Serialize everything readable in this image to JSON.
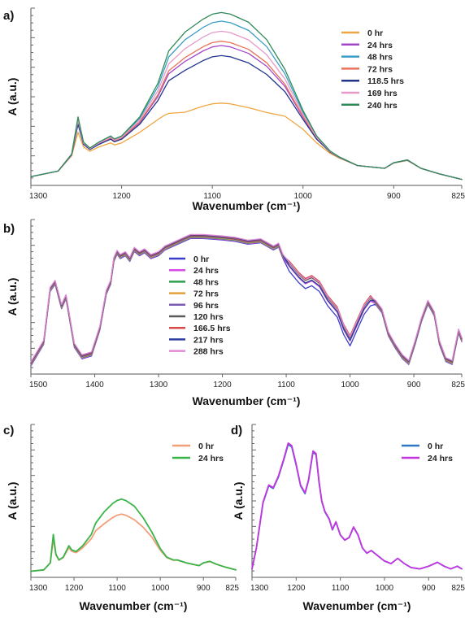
{
  "chart_data": [
    {
      "panel": "a)",
      "type": "line",
      "ylabel": "A (a.u.)",
      "xlabel": "Wavenumber (cm⁻¹)",
      "xlim": [
        1300,
        825
      ],
      "xticks": [
        1300,
        1200,
        1100,
        1000,
        900,
        825
      ],
      "x": [
        1300,
        1270,
        1255,
        1248,
        1242,
        1235,
        1225,
        1212,
        1208,
        1200,
        1180,
        1160,
        1152,
        1148,
        1130,
        1110,
        1100,
        1090,
        1080,
        1060,
        1040,
        1020,
        1000,
        985,
        970,
        960,
        940,
        910,
        900,
        885,
        870,
        850,
        825
      ],
      "base": [
        2,
        4,
        10,
        22,
        14,
        12,
        14,
        16,
        15,
        16,
        22,
        32,
        38,
        41,
        46,
        50,
        51.5,
        52,
        51.5,
        49,
        44,
        36,
        24,
        16,
        11,
        9,
        6,
        5,
        7,
        8,
        5,
        3,
        1
      ],
      "series": [
        {
          "name": "0 hr",
          "color": "#f0a640",
          "scale": 0.55
        },
        {
          "name": "24 hrs",
          "color": "#a347c8",
          "scale": 0.95
        },
        {
          "name": "48 hrs",
          "color": "#3a9ec6",
          "scale": 1.12
        },
        {
          "name": "72 hrs",
          "color": "#e8735a",
          "scale": 0.98
        },
        {
          "name": "118.5 hrs",
          "color": "#23348f",
          "scale": 0.88
        },
        {
          "name": "169 hrs",
          "color": "#e59ac9",
          "scale": 1.05
        },
        {
          "name": "240 hrs",
          "color": "#2e8b57",
          "scale": 1.18
        }
      ],
      "legend": "right"
    },
    {
      "panel": "b)",
      "type": "line",
      "ylabel": "A (a.u.)",
      "xlabel": "Wavenumber (cm⁻¹)",
      "xlim": [
        1500,
        825
      ],
      "xticks": [
        1500,
        1400,
        1300,
        1200,
        1100,
        1000,
        900,
        825
      ],
      "x": [
        1500,
        1480,
        1470,
        1462,
        1452,
        1445,
        1432,
        1420,
        1405,
        1392,
        1382,
        1375,
        1370,
        1365,
        1360,
        1352,
        1345,
        1338,
        1330,
        1322,
        1312,
        1300,
        1290,
        1275,
        1260,
        1250,
        1230,
        1200,
        1180,
        1160,
        1140,
        1120,
        1112,
        1105,
        1095,
        1080,
        1070,
        1060,
        1048,
        1035,
        1020,
        1010,
        1000,
        990,
        978,
        968,
        960,
        950,
        940,
        930,
        918,
        908,
        898,
        888,
        878,
        868,
        860,
        850,
        840,
        830,
        825
      ],
      "base": [
        5,
        20,
        57,
        62,
        45,
        52,
        18,
        10,
        12,
        30,
        55,
        62,
        78,
        83,
        80,
        82,
        78,
        85,
        82,
        84,
        80,
        82,
        86,
        89,
        92,
        94,
        94,
        93,
        92,
        90,
        91,
        86,
        88,
        80,
        76,
        68,
        64,
        66,
        62,
        52,
        44,
        32,
        24,
        34,
        46,
        52,
        48,
        42,
        26,
        18,
        10,
        6,
        20,
        36,
        48,
        40,
        20,
        8,
        6,
        28,
        22
      ],
      "series": [
        {
          "name": "0 hr",
          "color": "#3d3dcc",
          "dip": 1.0
        },
        {
          "name": "24 hrs",
          "color": "#d44be6",
          "dip": 0.4
        },
        {
          "name": "48 hrs",
          "color": "#2e9e4f",
          "dip": 0.0
        },
        {
          "name": "72 hrs",
          "color": "#e2a03f",
          "dip": 0.1
        },
        {
          "name": "96 hrs",
          "color": "#7b5bb3",
          "dip": 0.5
        },
        {
          "name": "120 hrs",
          "color": "#5b5b5b",
          "dip": 0.2
        },
        {
          "name": "166.5 hrs",
          "color": "#d84a4a",
          "dip": 0.0
        },
        {
          "name": "217 hrs",
          "color": "#2e3f9e",
          "dip": 0.7
        },
        {
          "name": "288 hrs",
          "color": "#e08ad6",
          "dip": 0.3
        }
      ],
      "legend": "center"
    },
    {
      "panel": "c)",
      "type": "line",
      "ylabel": "A (a.u.)",
      "xlabel": "Wavenumber (cm⁻¹)",
      "xlim": [
        1300,
        825
      ],
      "xticks": [
        1300,
        1200,
        1100,
        1000,
        900,
        825
      ],
      "x": [
        1300,
        1270,
        1255,
        1248,
        1242,
        1235,
        1225,
        1212,
        1205,
        1195,
        1180,
        1160,
        1150,
        1130,
        1110,
        1100,
        1090,
        1080,
        1060,
        1040,
        1020,
        1000,
        985,
        970,
        960,
        940,
        910,
        900,
        885,
        870,
        850,
        825
      ],
      "base": [
        2,
        3,
        8,
        28,
        14,
        10,
        12,
        20,
        17,
        16,
        20,
        28,
        36,
        44,
        50,
        52,
        53,
        52,
        48,
        40,
        30,
        18,
        12,
        10,
        10,
        8,
        6,
        8,
        9,
        7,
        5,
        3
      ],
      "series": [
        {
          "name": "0 hr",
          "color": "#f2a079",
          "scale": 0.8
        },
        {
          "name": "24 hrs",
          "color": "#3ab54a",
          "scale": 1.0
        }
      ],
      "legend": "top-right"
    },
    {
      "panel": "d)",
      "type": "line",
      "ylabel": "A (a.u.)",
      "xlabel": "Wavenumber (cm⁻¹)",
      "xlim": [
        1300,
        825
      ],
      "xticks": [
        1300,
        1200,
        1100,
        1000,
        900,
        825
      ],
      "x": [
        1300,
        1290,
        1275,
        1262,
        1252,
        1240,
        1228,
        1218,
        1210,
        1200,
        1190,
        1180,
        1172,
        1162,
        1155,
        1148,
        1142,
        1135,
        1125,
        1118,
        1110,
        1100,
        1090,
        1080,
        1070,
        1060,
        1050,
        1040,
        1030,
        1015,
        1000,
        985,
        970,
        955,
        940,
        920,
        900,
        880,
        865,
        850,
        835,
        825
      ],
      "base": [
        4,
        20,
        55,
        68,
        66,
        75,
        88,
        100,
        98,
        84,
        68,
        62,
        72,
        94,
        92,
        70,
        56,
        48,
        42,
        34,
        40,
        30,
        26,
        28,
        36,
        30,
        20,
        16,
        18,
        14,
        10,
        8,
        12,
        8,
        5,
        4,
        6,
        9,
        6,
        4,
        6,
        4
      ],
      "series": [
        {
          "name": "0 hr",
          "color": "#2f78c4",
          "scale": 0.99
        },
        {
          "name": "24 hrs",
          "color": "#c436e0",
          "scale": 1.0
        }
      ],
      "legend": "top-right"
    }
  ]
}
